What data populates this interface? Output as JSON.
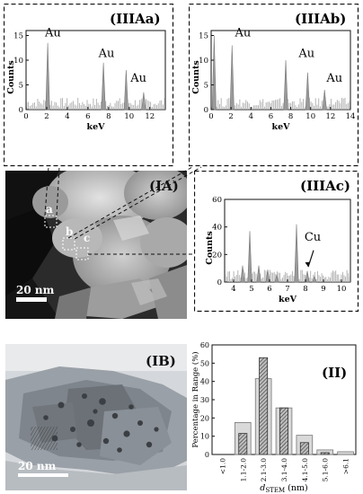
{
  "panels": {
    "IIIAa": {
      "label": "(IIIAa)",
      "ylabel": "Counts",
      "xlabel": "keV",
      "yticks": [
        "0",
        "5",
        "10",
        "15"
      ],
      "xticks": [
        "0",
        "2",
        "4",
        "6",
        "8",
        "10",
        "12"
      ],
      "annotations": [
        "Au",
        "Au",
        "Au"
      ]
    },
    "IIIAb": {
      "label": "(IIIAb)",
      "ylabel": "Counts",
      "xlabel": "keV",
      "yticks": [
        "0",
        "5",
        "10",
        "15"
      ],
      "xticks": [
        "0",
        "2",
        "4",
        "6",
        "8",
        "10",
        "12",
        "14"
      ],
      "annotations": [
        "Au",
        "Au",
        "Au"
      ]
    },
    "IIIAc": {
      "label": "(IIIAc)",
      "ylabel": "Counts",
      "xlabel": "keV",
      "yticks": [
        "0",
        "20",
        "40",
        "60"
      ],
      "xticks": [
        "4",
        "5",
        "6",
        "7",
        "8",
        "9",
        "10"
      ],
      "annotations": [
        "Cu"
      ]
    },
    "IA": {
      "label": "(IA)",
      "scale": "20 nm",
      "markers": [
        "a",
        "b",
        "c"
      ]
    },
    "IB": {
      "label": "(IB)",
      "scale": "20 nm"
    },
    "II": {
      "label": "(II)"
    }
  },
  "chart_data": [
    {
      "type": "line",
      "panel": "IIIAa",
      "xlabel": "keV",
      "ylabel": "Counts",
      "xlim": [
        0,
        13.5
      ],
      "ylim": [
        0,
        16
      ],
      "peaks": [
        {
          "x": 2.1,
          "y": 13.5
        },
        {
          "x": 7.5,
          "y": 9.5
        },
        {
          "x": 9.7,
          "y": 8.0
        },
        {
          "x": 11.4,
          "y": 3.5
        }
      ]
    },
    {
      "type": "line",
      "panel": "IIIAb",
      "xlabel": "keV",
      "ylabel": "Counts",
      "xlim": [
        0,
        14
      ],
      "ylim": [
        0,
        16
      ],
      "peaks": [
        {
          "x": 0.3,
          "y": 15.0
        },
        {
          "x": 2.1,
          "y": 13.0
        },
        {
          "x": 7.5,
          "y": 10.0
        },
        {
          "x": 9.7,
          "y": 7.5
        },
        {
          "x": 11.4,
          "y": 4.0
        }
      ]
    },
    {
      "type": "line",
      "panel": "IIIAc",
      "xlabel": "keV",
      "ylabel": "Counts",
      "xlim": [
        3.5,
        10.5
      ],
      "ylim": [
        0,
        60
      ],
      "peaks": [
        {
          "x": 4.5,
          "y": 12
        },
        {
          "x": 4.9,
          "y": 37
        },
        {
          "x": 5.4,
          "y": 12
        },
        {
          "x": 5.9,
          "y": 9
        },
        {
          "x": 6.4,
          "y": 5
        },
        {
          "x": 7.5,
          "y": 42
        },
        {
          "x": 8.1,
          "y": 8
        },
        {
          "x": 8.5,
          "y": 4
        }
      ]
    },
    {
      "type": "bar",
      "panel": "II",
      "ylabel": "Percentage in Range (%)",
      "xlabel": "dSTEM (nm)",
      "ylim": [
        0,
        60
      ],
      "yticks": [
        "0",
        "10",
        "20",
        "30",
        "40",
        "50",
        "60"
      ],
      "categories": [
        "<1.0",
        "1.1-2.0",
        "2.1-3.0",
        "3.1-4.0",
        "4.1-5.0",
        "5.1-6.0",
        ">6.1"
      ],
      "series": [
        {
          "values": [
            0,
            17.5,
            41.5,
            25.5,
            10.5,
            2.5,
            1.5
          ]
        },
        {
          "values": [
            0,
            11.5,
            53.0,
            25.5,
            6.5,
            1.0,
            0
          ]
        }
      ]
    }
  ]
}
